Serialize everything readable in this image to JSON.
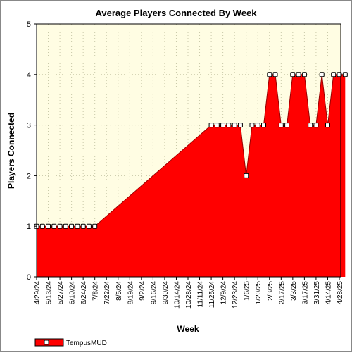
{
  "chart_data": {
    "type": "area",
    "title": "Average Players Connected By Week",
    "xlabel": "Week",
    "ylabel": "Players Connected",
    "ylim": [
      0,
      5
    ],
    "yticks": [
      0,
      1,
      2,
      3,
      4,
      5
    ],
    "xtick_labels": [
      "4/29/24",
      "5/13/24",
      "5/27/24",
      "6/10/24",
      "6/24/24",
      "7/8/24",
      "7/22/24",
      "8/5/24",
      "8/19/24",
      "9/2/24",
      "9/16/24",
      "9/30/24",
      "10/14/24",
      "10/28/24",
      "11/11/24",
      "11/25/24",
      "12/9/24",
      "12/23/24",
      "1/6/25",
      "1/20/25",
      "2/3/25",
      "2/17/25",
      "3/3/25",
      "3/17/25",
      "3/31/25",
      "4/14/25",
      "4/28/25"
    ],
    "grid": true,
    "legend_position": "bottom-left",
    "series": [
      {
        "name": "TempusMUD",
        "color": "#ff0000",
        "points": [
          {
            "x": "4/29/24",
            "y": 1,
            "marker": true
          },
          {
            "x": "5/6/24",
            "y": 1,
            "marker": true
          },
          {
            "x": "5/13/24",
            "y": 1,
            "marker": true
          },
          {
            "x": "5/20/24",
            "y": 1,
            "marker": true
          },
          {
            "x": "5/27/24",
            "y": 1,
            "marker": true
          },
          {
            "x": "6/3/24",
            "y": 1,
            "marker": true
          },
          {
            "x": "6/10/24",
            "y": 1,
            "marker": true
          },
          {
            "x": "6/17/24",
            "y": 1,
            "marker": true
          },
          {
            "x": "6/24/24",
            "y": 1,
            "marker": true
          },
          {
            "x": "7/1/24",
            "y": 1,
            "marker": true
          },
          {
            "x": "7/8/24",
            "y": 1,
            "marker": true
          },
          {
            "x": "11/25/24",
            "y": 3,
            "marker": true
          },
          {
            "x": "12/2/24",
            "y": 3,
            "marker": true
          },
          {
            "x": "12/9/24",
            "y": 3,
            "marker": true
          },
          {
            "x": "12/16/24",
            "y": 3,
            "marker": true
          },
          {
            "x": "12/23/24",
            "y": 3,
            "marker": true
          },
          {
            "x": "12/30/24",
            "y": 3,
            "marker": true
          },
          {
            "x": "1/6/25",
            "y": 2,
            "marker": true
          },
          {
            "x": "1/13/25",
            "y": 3,
            "marker": true
          },
          {
            "x": "1/20/25",
            "y": 3,
            "marker": true
          },
          {
            "x": "1/27/25",
            "y": 3,
            "marker": true
          },
          {
            "x": "2/3/25",
            "y": 4,
            "marker": true
          },
          {
            "x": "2/10/25",
            "y": 4,
            "marker": true
          },
          {
            "x": "2/17/25",
            "y": 3,
            "marker": true
          },
          {
            "x": "2/24/25",
            "y": 3,
            "marker": true
          },
          {
            "x": "3/3/25",
            "y": 4,
            "marker": true
          },
          {
            "x": "3/10/25",
            "y": 4,
            "marker": true
          },
          {
            "x": "3/17/25",
            "y": 4,
            "marker": true
          },
          {
            "x": "3/24/25",
            "y": 3,
            "marker": true
          },
          {
            "x": "3/31/25",
            "y": 3,
            "marker": true
          },
          {
            "x": "4/7/25",
            "y": 4,
            "marker": true
          },
          {
            "x": "4/14/25",
            "y": 3,
            "marker": true
          },
          {
            "x": "4/21/25",
            "y": 4,
            "marker": true
          },
          {
            "x": "4/28/25",
            "y": 4,
            "marker": true
          },
          {
            "x": "5/5/25",
            "y": 4,
            "marker": true
          }
        ]
      }
    ]
  }
}
